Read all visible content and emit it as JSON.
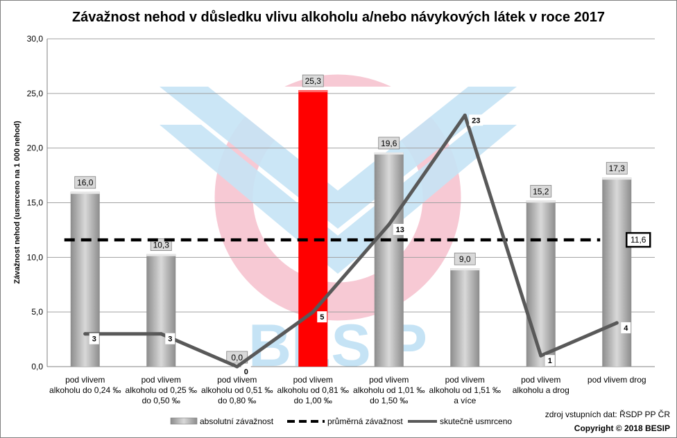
{
  "chart_data": {
    "type": "bar",
    "title": "Závažnost nehod v důsledku vlivu alkoholu a/nebo návykových látek v roce 2017",
    "ylabel": "Závažnost  nehod  (usmrceno  na 1 000 nehod)",
    "ylim": [
      0,
      30
    ],
    "yticks": [
      "0,0",
      "5,0",
      "10,0",
      "15,0",
      "20,0",
      "25,0",
      "30,0"
    ],
    "grid": true,
    "categories": [
      [
        "pod vlivem",
        "alkoholu do 0,24 ‰"
      ],
      [
        "pod vlivem",
        "alkoholu od 0,25 ‰",
        "do 0,50 ‰"
      ],
      [
        "pod vlivem",
        "alkoholu od 0,51 ‰",
        "do 0,80 ‰"
      ],
      [
        "pod vlivem",
        "alkoholu od 0,81 ‰",
        "do 1,00 ‰"
      ],
      [
        "pod vlivem",
        "alkoholu od 1,01 ‰",
        "do 1,50 ‰"
      ],
      [
        "pod vlivem",
        "alkoholu od 1,51 ‰",
        "a více"
      ],
      [
        "pod vlivem",
        "alkoholu a drog"
      ],
      [
        "pod vlivem drog"
      ]
    ],
    "series": [
      {
        "name": "absolutní závažnost",
        "kind": "bar",
        "values": [
          16.0,
          10.3,
          0.0,
          25.3,
          19.6,
          9.0,
          15.2,
          17.3
        ],
        "labels": [
          "16,0",
          "10,3",
          "0,0",
          "25,3",
          "19,6",
          "9,0",
          "15,2",
          "17,3"
        ],
        "highlight_index": 3,
        "color": "#a6a6a6",
        "highlight_color": "#ff0000"
      },
      {
        "name": "průměrná závažnost",
        "kind": "dashed-line",
        "value": 11.6,
        "label": "11,6",
        "color": "#000000"
      },
      {
        "name": "skutečně usmrceno",
        "kind": "line",
        "values": [
          3,
          3,
          0,
          5,
          13,
          23,
          1,
          4
        ],
        "labels": [
          "3",
          "3",
          "0",
          "5",
          "13",
          "23",
          "1",
          "4"
        ],
        "color": "#595959"
      }
    ],
    "legend_position": "bottom"
  },
  "footer": {
    "source": "zdroj vstupních dat: ŘSDP PP ČR",
    "copyright": "Copyright © 2018 BESIP"
  },
  "watermark": {
    "text": "BESIP",
    "colors": {
      "ring": "#f7c9d4",
      "chevron": "#c5e3f5",
      "text": "#c5e3f5"
    }
  }
}
